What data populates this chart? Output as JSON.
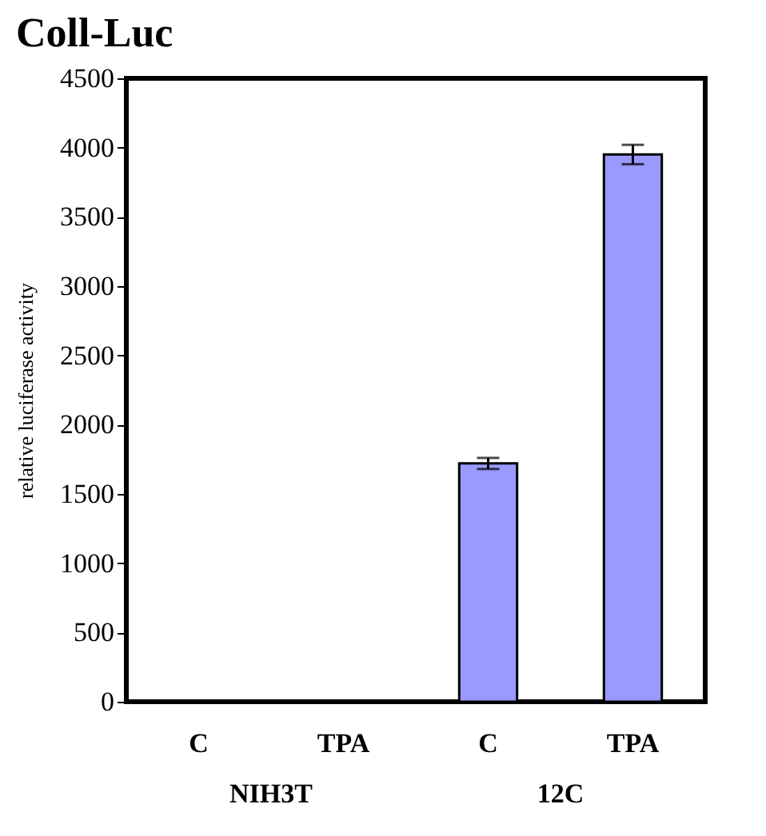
{
  "chart_data": {
    "type": "bar",
    "title": "Coll-Luc",
    "ylabel": "relative luciferase activity",
    "categories": [
      "C",
      "TPA",
      "C",
      "TPA"
    ],
    "values": [
      0,
      0,
      1720,
      3950
    ],
    "errors": [
      null,
      null,
      40,
      70
    ],
    "color": "#9999ff",
    "ylim": [
      0,
      4500
    ],
    "yticks": [
      0,
      500,
      1000,
      1500,
      2000,
      2500,
      3000,
      3500,
      4000,
      4500
    ],
    "grid": false,
    "annotations": [
      "NIH3T",
      "12C"
    ]
  }
}
